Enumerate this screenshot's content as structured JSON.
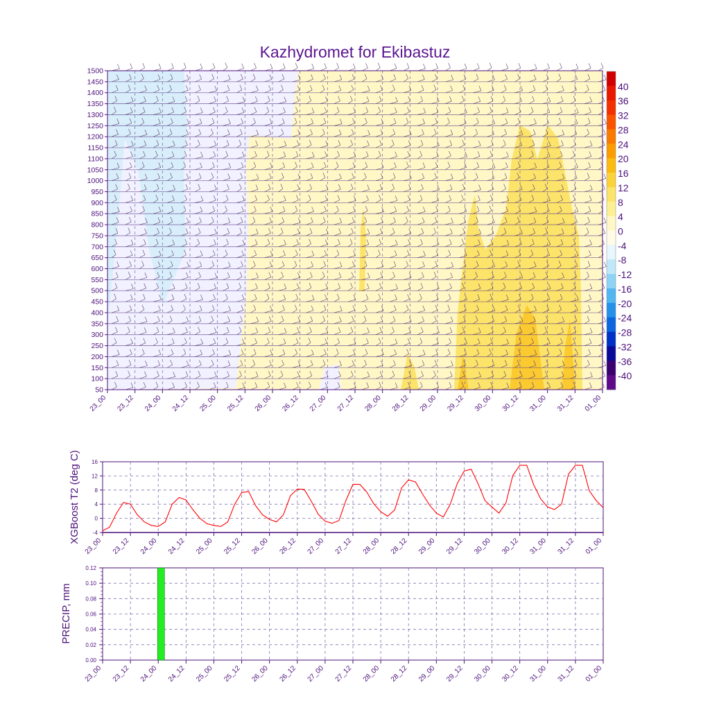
{
  "title": "Kazhydromet for Ekibastuz",
  "colors": {
    "axis": "#4b0f7a",
    "t2_line": "#ff0000",
    "precip_bar": "#22ee22",
    "grid": "#8070b0"
  },
  "chart_data": [
    {
      "type": "heatmap",
      "name": "cross-section",
      "xlabel": "",
      "ylabel": "",
      "x_tick_labels": [
        "23_00",
        "23_12",
        "24_00",
        "24_12",
        "25_00",
        "25_12",
        "26_00",
        "26_12",
        "27_00",
        "27_12",
        "28_00",
        "28_12",
        "29_00",
        "29_12",
        "30_00",
        "30_12",
        "31_00",
        "31_12",
        "01_00"
      ],
      "y_tick_labels": [
        "1500",
        "1450",
        "1400",
        "1350",
        "1300",
        "1250",
        "1200",
        "1150",
        "1100",
        "1050",
        "1000",
        "950",
        "900",
        "850",
        "800",
        "750",
        "700",
        "650",
        "600",
        "550",
        "500",
        "450",
        "400",
        "350",
        "300",
        "250",
        "200",
        "150",
        "100",
        "50"
      ],
      "ylim": [
        50,
        1500
      ],
      "colorbar": {
        "labels": [
          "40",
          "36",
          "32",
          "28",
          "24",
          "20",
          "16",
          "12",
          "8",
          "4",
          "0",
          "-4",
          "-8",
          "-12",
          "-16",
          "-20",
          "-24",
          "-28",
          "-32",
          "-36",
          "-40"
        ],
        "colors": [
          "#d10000",
          "#e81800",
          "#f43000",
          "#fb5400",
          "#fb7a00",
          "#fb9d00",
          "#fbbb10",
          "#fcd23a",
          "#fce36a",
          "#fdf094",
          "#fff8c6",
          "#fffbe6",
          "#e8f6fd",
          "#bfe8fa",
          "#8dd3f6",
          "#52b6f1",
          "#2591eb",
          "#0b66e0",
          "#0030c8",
          "#0a0a9a",
          "#3b0070",
          "#5e0a8a"
        ]
      }
    },
    {
      "type": "line",
      "name": "t2",
      "ylabel": "XGBoost T2 (deg C)",
      "xlabel": "",
      "ylim": [
        -4,
        16
      ],
      "y_ticks": [
        "16",
        "12",
        "8",
        "4",
        "0",
        "-4"
      ],
      "x_tick_labels": [
        "23_00",
        "23_12",
        "24_00",
        "24_12",
        "25_00",
        "25_12",
        "26_00",
        "26_12",
        "27_00",
        "27_12",
        "28_00",
        "28_12",
        "29_00",
        "29_12",
        "30_00",
        "30_12",
        "31_00",
        "31_12",
        "01_00"
      ],
      "x_hours": [
        0,
        3,
        6,
        9,
        12,
        15,
        18,
        21,
        24,
        27,
        30,
        33,
        36,
        39,
        42,
        45,
        48,
        51,
        54,
        57,
        60,
        63,
        66,
        69,
        72,
        75,
        78,
        81,
        84,
        87,
        90,
        93,
        96,
        99,
        102,
        105,
        108,
        111,
        114,
        117,
        120,
        123,
        126,
        129,
        132,
        135,
        138,
        141,
        144,
        147,
        150,
        153,
        156,
        159,
        162,
        165,
        168,
        171,
        174,
        177,
        180,
        183,
        186,
        189,
        192,
        195,
        198,
        201,
        204,
        207,
        210,
        213,
        216
      ],
      "values": [
        -3.5,
        -2.5,
        1.5,
        4.5,
        4.0,
        1.0,
        -1.0,
        -2.0,
        -2.3,
        -1.0,
        4.0,
        5.9,
        5.2,
        2.4,
        0.0,
        -1.5,
        -2.0,
        -2.3,
        -1.0,
        4.0,
        7.3,
        7.6,
        3.6,
        1.0,
        -0.3,
        -1.0,
        1.0,
        6.4,
        8.3,
        8.2,
        4.9,
        1.2,
        -0.8,
        -1.4,
        -0.6,
        5.1,
        9.6,
        9.6,
        7.4,
        4.1,
        1.9,
        0.6,
        2.4,
        8.6,
        10.9,
        10.3,
        6.9,
        3.8,
        1.5,
        0.4,
        4.0,
        9.8,
        13.4,
        13.9,
        9.8,
        5.0,
        3.2,
        1.5,
        4.3,
        12.1,
        15.0,
        15.0,
        9.5,
        5.5,
        3.2,
        2.5,
        4.0,
        12.5,
        15.0,
        15.0,
        7.8,
        5.0,
        3.0
      ]
    },
    {
      "type": "bar",
      "name": "precip",
      "ylabel": "PRECIP, mm",
      "xlabel": "",
      "ylim": [
        0,
        0.12
      ],
      "y_ticks": [
        "0.12",
        "0.10",
        "0.08",
        "0.06",
        "0.04",
        "0.02",
        "0.00"
      ],
      "x_tick_labels": [
        "23_00",
        "23_12",
        "24_00",
        "24_12",
        "25_00",
        "25_12",
        "26_00",
        "26_12",
        "27_00",
        "27_12",
        "28_00",
        "28_12",
        "29_00",
        "29_12",
        "30_00",
        "30_12",
        "31_00",
        "31_12",
        "01_00"
      ],
      "bars": [
        {
          "x_hour": 24,
          "width_hours": 3,
          "value": 0.12
        }
      ]
    }
  ]
}
